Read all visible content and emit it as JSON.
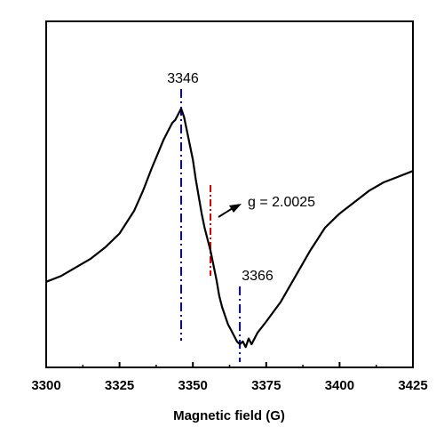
{
  "chart_data": {
    "type": "line",
    "title": "",
    "xlabel": "Magnetic field (G)",
    "ylabel": "",
    "xlim": [
      3300,
      3425
    ],
    "ylim": [
      0,
      1
    ],
    "xticks": [
      "3300",
      "3325",
      "3350",
      "3375",
      "3400",
      "3425"
    ],
    "grid": false,
    "series": [
      {
        "x": [
          3300,
          3305,
          3310,
          3315,
          3320,
          3325,
          3330,
          3333,
          3336,
          3338,
          3340,
          3342,
          3343,
          3344,
          3345,
          3346,
          3347,
          3348,
          3349,
          3350,
          3351,
          3352,
          3353,
          3354,
          3355,
          3356,
          3357,
          3358,
          3359,
          3360,
          3361,
          3362,
          3363,
          3364,
          3365,
          3366,
          3367,
          3368,
          3369,
          3370,
          3372,
          3375,
          3380,
          3385,
          3390,
          3395,
          3400,
          3405,
          3410,
          3415,
          3420,
          3425
        ],
        "y": [
          0.27,
          0.29,
          0.32,
          0.35,
          0.39,
          0.44,
          0.52,
          0.59,
          0.67,
          0.72,
          0.77,
          0.81,
          0.83,
          0.84,
          0.86,
          0.88,
          0.85,
          0.8,
          0.75,
          0.7,
          0.63,
          0.57,
          0.51,
          0.46,
          0.42,
          0.38,
          0.33,
          0.28,
          0.22,
          0.18,
          0.15,
          0.12,
          0.1,
          0.08,
          0.06,
          0.05,
          0.06,
          0.04,
          0.07,
          0.05,
          0.09,
          0.13,
          0.2,
          0.29,
          0.38,
          0.46,
          0.51,
          0.55,
          0.59,
          0.62,
          0.64,
          0.66
        ],
        "color": "#000000"
      }
    ],
    "markers": [
      {
        "x": 3346,
        "label": "3346",
        "color": "#0000cc"
      },
      {
        "x": 3366,
        "label": "3366",
        "color": "#0000cc"
      },
      {
        "x": 3356,
        "label": "",
        "color": "#dd0000"
      }
    ],
    "annotations": [
      {
        "text": "g = 2.0025"
      }
    ]
  }
}
